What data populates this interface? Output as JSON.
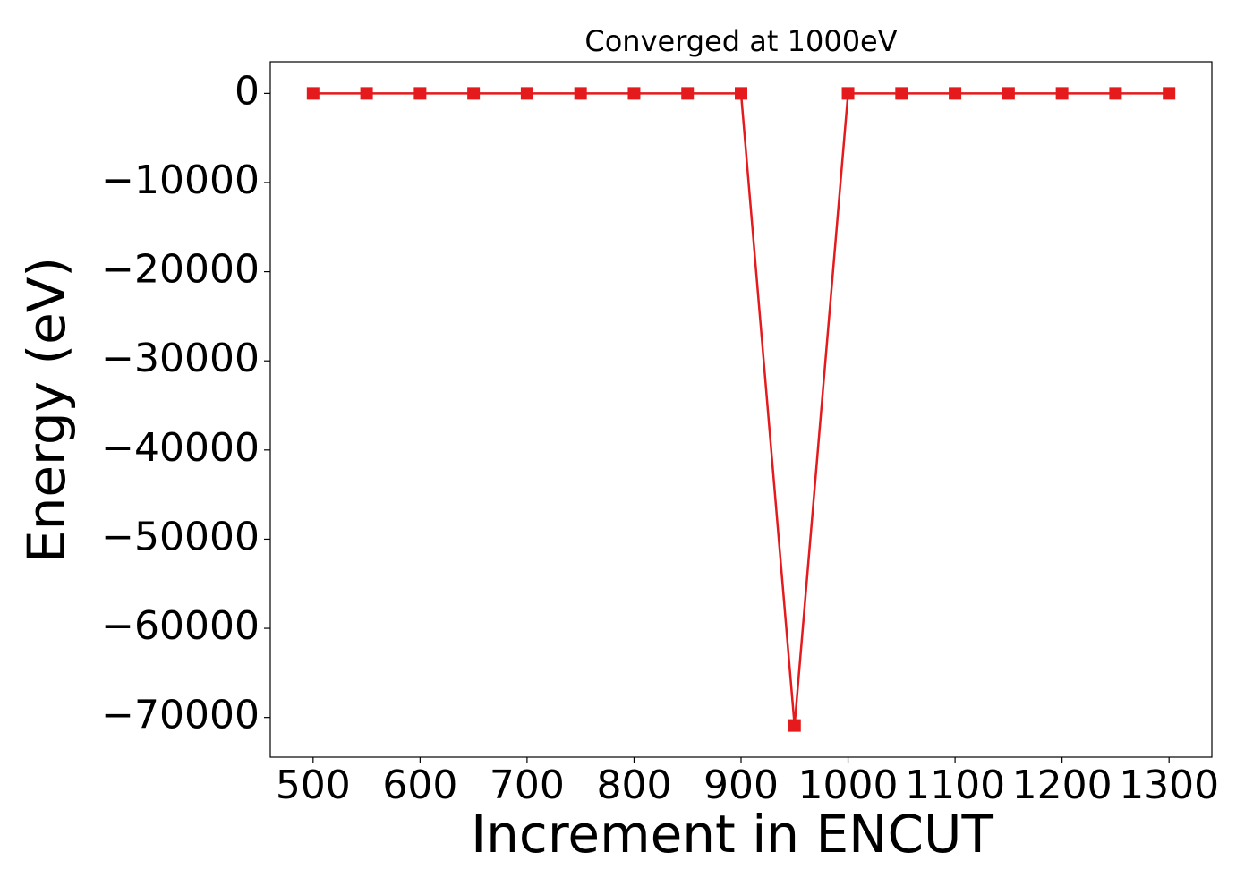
{
  "chart_data": {
    "type": "line",
    "title": "Converged at 1000eV",
    "xlabel": "Increment in ENCUT",
    "ylabel": "Energy (eV)",
    "x": [
      500,
      550,
      600,
      650,
      700,
      750,
      800,
      850,
      900,
      950,
      1000,
      1050,
      1100,
      1150,
      1200,
      1250,
      1300
    ],
    "series": [
      {
        "name": "Energy",
        "color": "#e41a1c",
        "values": [
          0,
          0,
          0,
          0,
          0,
          0,
          0,
          0,
          0,
          -70900,
          0,
          0,
          0,
          0,
          0,
          0,
          0
        ]
      }
    ],
    "xlim": [
      460,
      1340
    ],
    "xticks": [
      500,
      600,
      700,
      800,
      900,
      1000,
      1100,
      1200,
      1300
    ],
    "ylim": [
      -74450,
      3550
    ],
    "yticks": [
      {
        "value": -70000,
        "label": "−70000"
      },
      {
        "value": -60000,
        "label": "−60000"
      },
      {
        "value": -50000,
        "label": "−50000"
      },
      {
        "value": -40000,
        "label": "−40000"
      },
      {
        "value": -30000,
        "label": "−30000"
      },
      {
        "value": -20000,
        "label": "−20000"
      },
      {
        "value": -10000,
        "label": "−10000"
      },
      0
    ],
    "grid": false,
    "marker": "square"
  }
}
